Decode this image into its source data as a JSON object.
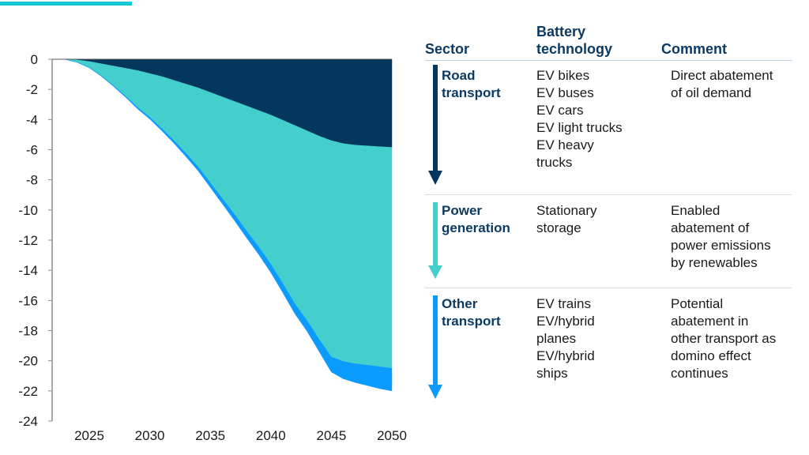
{
  "colors": {
    "accent": "#14c8d4",
    "road_transport": "#03375e",
    "power_generation": "#45cfcc",
    "other_transport": "#0b9bff",
    "header_text": "#0b3a63"
  },
  "chart_data": {
    "type": "area",
    "stacked": true,
    "title": "",
    "xlabel": "",
    "ylabel": "",
    "x": [
      2023,
      2024,
      2025,
      2026,
      2027,
      2028,
      2029,
      2030,
      2031,
      2032,
      2033,
      2034,
      2035,
      2036,
      2037,
      2038,
      2039,
      2040,
      2041,
      2042,
      2043,
      2044,
      2045,
      2046,
      2047,
      2048,
      2049,
      2050
    ],
    "series": [
      {
        "name": "Road transport",
        "color": "#03375e",
        "values": [
          0,
          -0.05,
          -0.15,
          -0.3,
          -0.45,
          -0.6,
          -0.75,
          -0.95,
          -1.15,
          -1.4,
          -1.65,
          -1.9,
          -2.2,
          -2.5,
          -2.8,
          -3.1,
          -3.4,
          -3.7,
          -4.05,
          -4.4,
          -4.75,
          -5.1,
          -5.4,
          -5.6,
          -5.7,
          -5.75,
          -5.8,
          -5.85
        ]
      },
      {
        "name": "Power generation",
        "color": "#45cfcc",
        "values": [
          0,
          -0.15,
          -0.4,
          -0.8,
          -1.3,
          -1.85,
          -2.45,
          -2.9,
          -3.45,
          -4.0,
          -4.6,
          -5.25,
          -6.0,
          -6.75,
          -7.5,
          -8.3,
          -9.05,
          -9.9,
          -10.85,
          -11.85,
          -12.6,
          -13.5,
          -14.35,
          -14.45,
          -14.5,
          -14.55,
          -14.6,
          -14.65
        ]
      },
      {
        "name": "Other transport",
        "color": "#0b9bff",
        "values": [
          0,
          -0.01,
          -0.02,
          -0.03,
          -0.05,
          -0.07,
          -0.1,
          -0.12,
          -0.15,
          -0.18,
          -0.22,
          -0.26,
          -0.3,
          -0.35,
          -0.4,
          -0.45,
          -0.5,
          -0.55,
          -0.6,
          -0.65,
          -0.7,
          -0.8,
          -1.0,
          -1.15,
          -1.25,
          -1.35,
          -1.45,
          -1.5
        ]
      }
    ],
    "xticks": [
      "2025",
      "2030",
      "2035",
      "2040",
      "2045",
      "2050"
    ],
    "xtick_values": [
      2025,
      2030,
      2035,
      2040,
      2045,
      2050
    ],
    "yticks": [
      "0",
      "-2",
      "-4",
      "-6",
      "-8",
      "-10",
      "-12",
      "-14",
      "-16",
      "-18",
      "-20",
      "-22",
      "-24"
    ],
    "ytick_values": [
      0,
      -2,
      -4,
      -6,
      -8,
      -10,
      -12,
      -14,
      -16,
      -18,
      -20,
      -22,
      -24
    ],
    "xlim": [
      2021.3,
      2050
    ],
    "ylim": [
      -24,
      0
    ],
    "grid": false,
    "legend": "none"
  },
  "table": {
    "headers": {
      "sector": "Sector",
      "battery_line1": "Battery",
      "battery_line2": "technology",
      "comment": "Comment"
    },
    "rows": [
      {
        "sector": [
          "Road",
          "transport"
        ],
        "arrow_color": "#03375e",
        "technology": [
          "EV bikes",
          "EV buses",
          "EV cars",
          "EV light trucks",
          "EV heavy",
          "trucks"
        ],
        "comment": [
          "Direct abatement",
          "of oil demand"
        ]
      },
      {
        "sector": [
          "Power",
          "generation"
        ],
        "arrow_color": "#45cfcc",
        "technology": [
          "Stationary",
          "storage"
        ],
        "comment": [
          "Enabled",
          "abatement of",
          "power emissions",
          "by renewables"
        ]
      },
      {
        "sector": [
          "Other",
          "transport"
        ],
        "arrow_color": "#0b9bff",
        "technology": [
          "EV trains",
          "EV/hybrid",
          "planes",
          "EV/hybrid",
          "ships"
        ],
        "comment": [
          "Potential",
          "abatement in",
          "other transport as",
          "domino effect",
          "continues"
        ]
      }
    ]
  }
}
